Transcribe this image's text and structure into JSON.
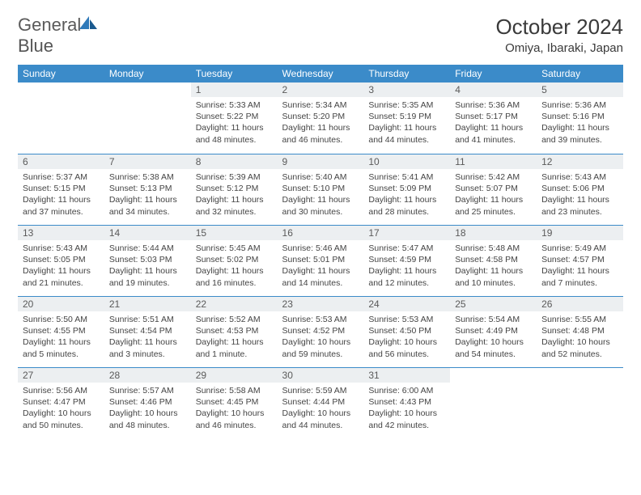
{
  "logo": {
    "text1": "General",
    "text2": "Blue"
  },
  "title": "October 2024",
  "location": "Omiya, Ibaraki, Japan",
  "colors": {
    "header_bg": "#3b8bc9",
    "header_text": "#ffffff",
    "daynum_bg": "#eceff1",
    "text": "#444444",
    "logo_blue": "#2f79b9",
    "page_bg": "#ffffff"
  },
  "dayHeaders": [
    "Sunday",
    "Monday",
    "Tuesday",
    "Wednesday",
    "Thursday",
    "Friday",
    "Saturday"
  ],
  "weeks": [
    [
      null,
      null,
      {
        "n": "1",
        "sr": "5:33 AM",
        "ss": "5:22 PM",
        "dl": "11 hours and 48 minutes."
      },
      {
        "n": "2",
        "sr": "5:34 AM",
        "ss": "5:20 PM",
        "dl": "11 hours and 46 minutes."
      },
      {
        "n": "3",
        "sr": "5:35 AM",
        "ss": "5:19 PM",
        "dl": "11 hours and 44 minutes."
      },
      {
        "n": "4",
        "sr": "5:36 AM",
        "ss": "5:17 PM",
        "dl": "11 hours and 41 minutes."
      },
      {
        "n": "5",
        "sr": "5:36 AM",
        "ss": "5:16 PM",
        "dl": "11 hours and 39 minutes."
      }
    ],
    [
      {
        "n": "6",
        "sr": "5:37 AM",
        "ss": "5:15 PM",
        "dl": "11 hours and 37 minutes."
      },
      {
        "n": "7",
        "sr": "5:38 AM",
        "ss": "5:13 PM",
        "dl": "11 hours and 34 minutes."
      },
      {
        "n": "8",
        "sr": "5:39 AM",
        "ss": "5:12 PM",
        "dl": "11 hours and 32 minutes."
      },
      {
        "n": "9",
        "sr": "5:40 AM",
        "ss": "5:10 PM",
        "dl": "11 hours and 30 minutes."
      },
      {
        "n": "10",
        "sr": "5:41 AM",
        "ss": "5:09 PM",
        "dl": "11 hours and 28 minutes."
      },
      {
        "n": "11",
        "sr": "5:42 AM",
        "ss": "5:07 PM",
        "dl": "11 hours and 25 minutes."
      },
      {
        "n": "12",
        "sr": "5:43 AM",
        "ss": "5:06 PM",
        "dl": "11 hours and 23 minutes."
      }
    ],
    [
      {
        "n": "13",
        "sr": "5:43 AM",
        "ss": "5:05 PM",
        "dl": "11 hours and 21 minutes."
      },
      {
        "n": "14",
        "sr": "5:44 AM",
        "ss": "5:03 PM",
        "dl": "11 hours and 19 minutes."
      },
      {
        "n": "15",
        "sr": "5:45 AM",
        "ss": "5:02 PM",
        "dl": "11 hours and 16 minutes."
      },
      {
        "n": "16",
        "sr": "5:46 AM",
        "ss": "5:01 PM",
        "dl": "11 hours and 14 minutes."
      },
      {
        "n": "17",
        "sr": "5:47 AM",
        "ss": "4:59 PM",
        "dl": "11 hours and 12 minutes."
      },
      {
        "n": "18",
        "sr": "5:48 AM",
        "ss": "4:58 PM",
        "dl": "11 hours and 10 minutes."
      },
      {
        "n": "19",
        "sr": "5:49 AM",
        "ss": "4:57 PM",
        "dl": "11 hours and 7 minutes."
      }
    ],
    [
      {
        "n": "20",
        "sr": "5:50 AM",
        "ss": "4:55 PM",
        "dl": "11 hours and 5 minutes."
      },
      {
        "n": "21",
        "sr": "5:51 AM",
        "ss": "4:54 PM",
        "dl": "11 hours and 3 minutes."
      },
      {
        "n": "22",
        "sr": "5:52 AM",
        "ss": "4:53 PM",
        "dl": "11 hours and 1 minute."
      },
      {
        "n": "23",
        "sr": "5:53 AM",
        "ss": "4:52 PM",
        "dl": "10 hours and 59 minutes."
      },
      {
        "n": "24",
        "sr": "5:53 AM",
        "ss": "4:50 PM",
        "dl": "10 hours and 56 minutes."
      },
      {
        "n": "25",
        "sr": "5:54 AM",
        "ss": "4:49 PM",
        "dl": "10 hours and 54 minutes."
      },
      {
        "n": "26",
        "sr": "5:55 AM",
        "ss": "4:48 PM",
        "dl": "10 hours and 52 minutes."
      }
    ],
    [
      {
        "n": "27",
        "sr": "5:56 AM",
        "ss": "4:47 PM",
        "dl": "10 hours and 50 minutes."
      },
      {
        "n": "28",
        "sr": "5:57 AM",
        "ss": "4:46 PM",
        "dl": "10 hours and 48 minutes."
      },
      {
        "n": "29",
        "sr": "5:58 AM",
        "ss": "4:45 PM",
        "dl": "10 hours and 46 minutes."
      },
      {
        "n": "30",
        "sr": "5:59 AM",
        "ss": "4:44 PM",
        "dl": "10 hours and 44 minutes."
      },
      {
        "n": "31",
        "sr": "6:00 AM",
        "ss": "4:43 PM",
        "dl": "10 hours and 42 minutes."
      },
      null,
      null
    ]
  ],
  "labels": {
    "sunrise": "Sunrise:",
    "sunset": "Sunset:",
    "daylight": "Daylight:"
  }
}
